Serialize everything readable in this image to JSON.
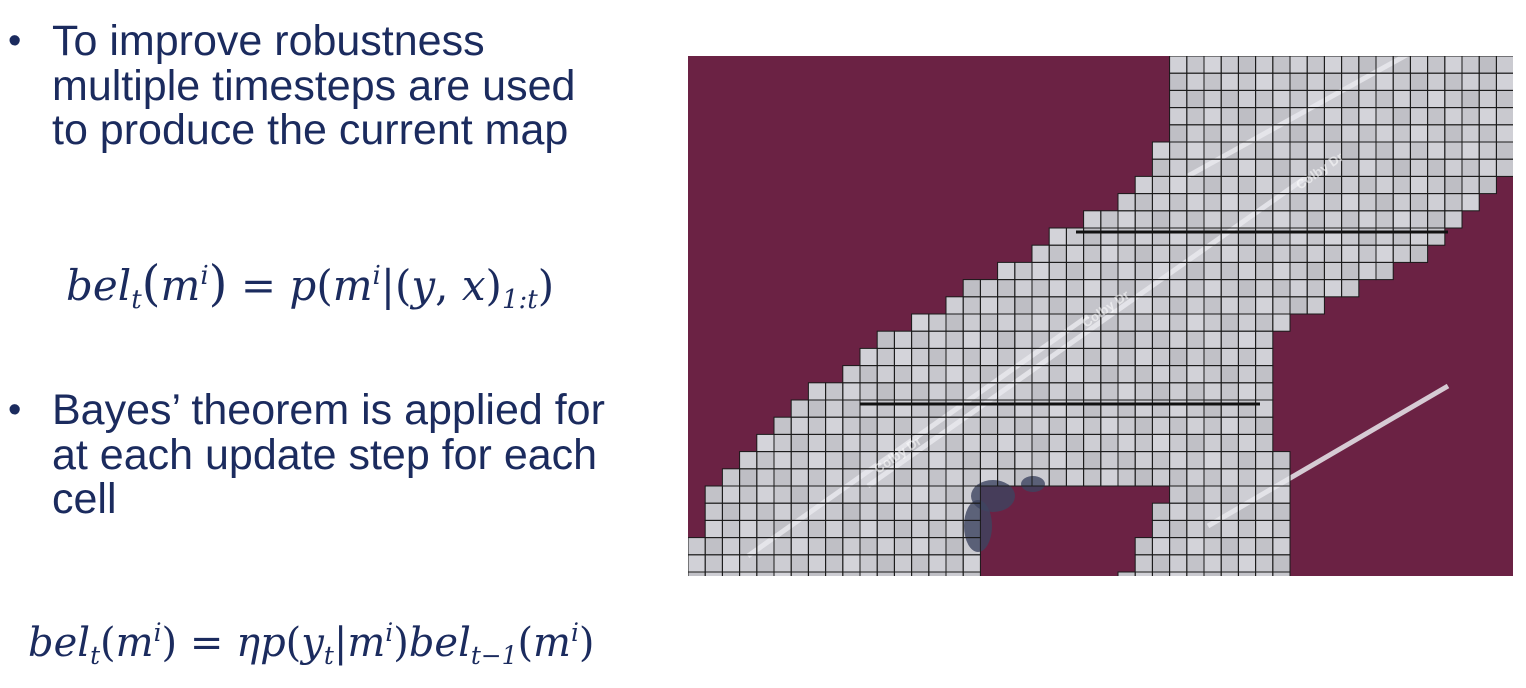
{
  "bullets": [
    {
      "lines": [
        "To improve robustness",
        "multiple timesteps are used",
        "to produce the current map"
      ]
    },
    {
      "lines": [
        "Bayes’ theorem is applied for",
        "at each update step for each",
        "cell"
      ]
    }
  ],
  "equations": {
    "eq1": {
      "bel": "bel",
      "sub_t": "t",
      "m": "m",
      "sup_i": "i",
      "eq": "=",
      "p": "p",
      "y": "y",
      "comma": ",",
      "x": "x",
      "range": "1:t"
    },
    "eq2": {
      "bel": "bel",
      "sub_t": "t",
      "m": "m",
      "sup_i": "i",
      "eq": "=",
      "eta": "η",
      "p": "p",
      "y": "y",
      "sub_t2": "t",
      "bel2": "bel",
      "sub_tm1": "t−1"
    }
  },
  "map": {
    "colors": {
      "unknown": "#6b2244",
      "gray_cell": "#c2c2c8",
      "gridline": "#1a1a1a",
      "road_stripe": "#e9e9ee",
      "dark_patch": "#3d4560"
    },
    "watermarks": [
      "Colby Dr",
      "Colby Dr",
      "Colby Dr"
    ]
  },
  "colors": {
    "text": "#1b2b5e",
    "background": "#ffffff"
  }
}
